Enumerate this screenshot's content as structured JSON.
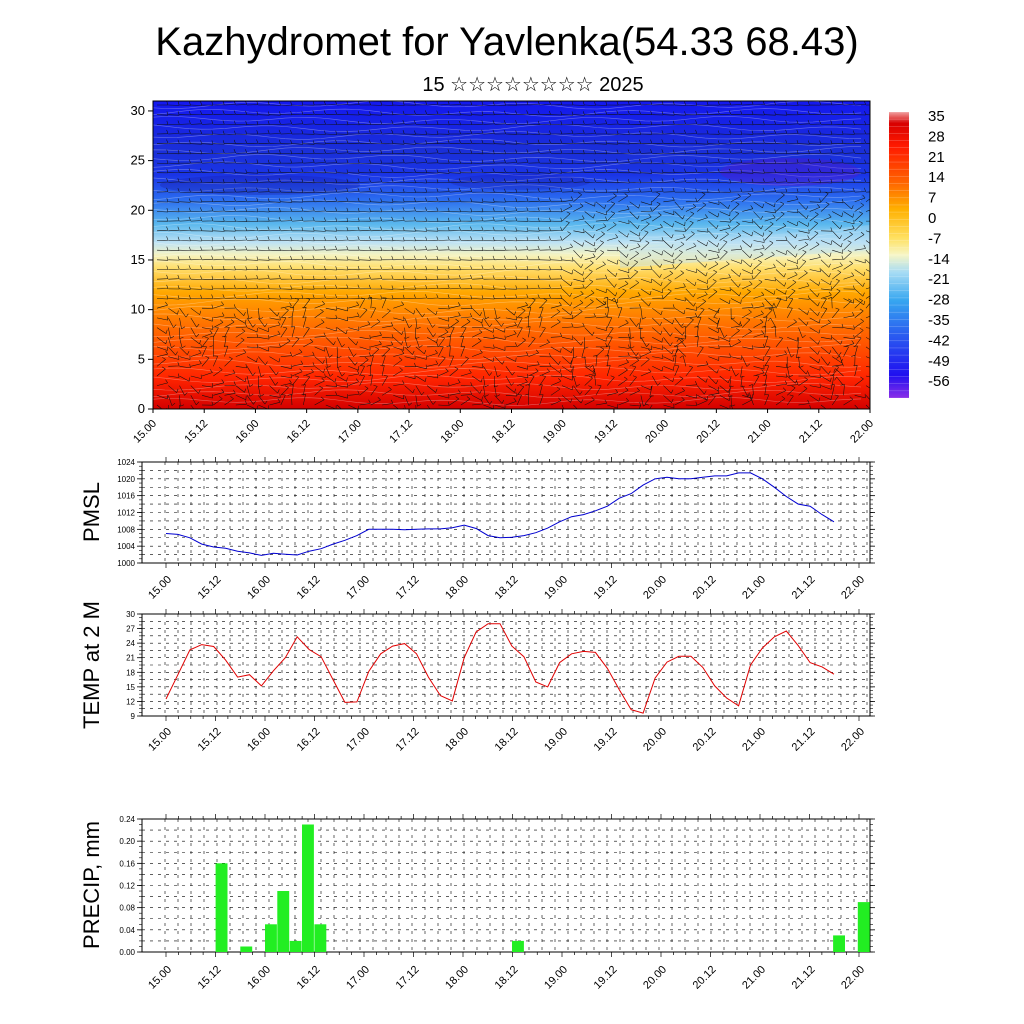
{
  "header": {
    "title": "Kazhydromet for Yavlenka(54.33 68.43)",
    "subtitle": "15 ☆☆☆☆☆☆☆☆ 2025"
  },
  "chart_data": [
    {
      "type": "heatmap",
      "title": "",
      "xlabel": "",
      "ylabel": "",
      "x_ticks": [
        "15.00",
        "15.12",
        "16.00",
        "16.12",
        "17.00",
        "17.12",
        "18.00",
        "18.12",
        "19.00",
        "19.12",
        "20.00",
        "20.12",
        "21.00",
        "21.12",
        "22.00"
      ],
      "y_ticks": [
        0,
        5,
        10,
        15,
        20,
        25,
        30
      ],
      "ylim": [
        0,
        31
      ],
      "colorbar_labels": [
        "35",
        "28",
        "21",
        "14",
        "7",
        "0",
        "-7",
        "-14",
        "-21",
        "-28",
        "-35",
        "-42",
        "-49",
        "-56"
      ],
      "colorbar_range": [
        -60,
        38
      ],
      "wind_barbs": true,
      "colors": [
        "#7a1cf0",
        "#1a10f0",
        "#2a70f0",
        "#3ec0f0",
        "#c8e8f4",
        "#fff8a0",
        "#ffd000",
        "#ff8000",
        "#ff2000",
        "#d80000"
      ]
    },
    {
      "type": "line",
      "ylabel": "PMSL",
      "ylim": [
        1000,
        1024
      ],
      "y_ticks": [
        1000,
        1004,
        1008,
        1012,
        1016,
        1020,
        1024
      ],
      "x_ticks": [
        "15.00",
        "15.12",
        "16.00",
        "16.12",
        "17.00",
        "17.12",
        "18.00",
        "18.12",
        "19.00",
        "19.12",
        "20.00",
        "20.12",
        "21.00",
        "21.12",
        "22.00"
      ],
      "series": [
        {
          "color": "#0000d0",
          "values": [
            1007,
            1006.8,
            1006,
            1004.5,
            1003.8,
            1003.5,
            1002.8,
            1002.4,
            1001.8,
            1002.3,
            1002.1,
            1001.9,
            1002.8,
            1003.4,
            1004.5,
            1005.4,
            1006.5,
            1008,
            1008,
            1008,
            1007.9,
            1008,
            1008.1,
            1008.1,
            1008.4,
            1009,
            1008.2,
            1006.5,
            1006,
            1006.1,
            1006.5,
            1007.2,
            1008.3,
            1009.8,
            1011,
            1011.5,
            1012.4,
            1013.5,
            1015.4,
            1016.5,
            1018.5,
            1020,
            1020.4,
            1020,
            1020,
            1020.4,
            1020.7,
            1020.7,
            1021.4,
            1021.4,
            1020,
            1018,
            1015.8,
            1014,
            1013.5,
            1011.5,
            1009.8
          ]
        }
      ]
    },
    {
      "type": "line",
      "ylabel": "TEMP at 2 M",
      "ylim": [
        9,
        30
      ],
      "y_ticks": [
        9,
        12,
        15,
        18,
        21,
        24,
        27,
        30
      ],
      "x_ticks": [
        "15.00",
        "15.12",
        "16.00",
        "16.12",
        "17.00",
        "17.12",
        "18.00",
        "18.12",
        "19.00",
        "19.12",
        "20.00",
        "20.12",
        "21.00",
        "21.12",
        "22.00"
      ],
      "series": [
        {
          "color": "#e00000",
          "values": [
            12.5,
            17.5,
            22.6,
            23.7,
            23.3,
            20.5,
            17,
            17.5,
            15.2,
            18.3,
            21,
            25.3,
            22.7,
            21.2,
            16.5,
            11.8,
            11.9,
            18.2,
            21.8,
            23.4,
            23.9,
            21.8,
            17,
            13.2,
            12.1,
            21,
            26.3,
            28,
            28,
            23.4,
            21.2,
            16,
            15,
            20,
            21.8,
            22.3,
            22.1,
            18.8,
            14.4,
            10.3,
            9.6,
            16.8,
            20.1,
            21.3,
            21.3,
            19,
            15.2,
            12.7,
            11.1,
            19.5,
            23,
            25.3,
            26.5,
            23.5,
            20,
            19.1,
            17.6
          ]
        }
      ]
    },
    {
      "type": "bar",
      "ylabel": "PRECIP, mm",
      "ylim": [
        0,
        0.24
      ],
      "y_ticks": [
        "0.00",
        "0.04",
        "0.08",
        "0.12",
        "0.16",
        "0.20",
        "0.24"
      ],
      "x_ticks": [
        "15.00",
        "15.12",
        "16.00",
        "16.12",
        "17.00",
        "17.12",
        "18.00",
        "18.12",
        "19.00",
        "19.12",
        "20.00",
        "20.12",
        "21.00",
        "21.12",
        "22.00"
      ],
      "series": [
        {
          "color": "#22ee22",
          "values": [
            0,
            0,
            0,
            0,
            0,
            0.16,
            0,
            0.01,
            0,
            0.05,
            0.11,
            0.02,
            0.23,
            0.05,
            0,
            0,
            0,
            0,
            0,
            0,
            0,
            0,
            0,
            0,
            0,
            0,
            0,
            0,
            0,
            0.02,
            0,
            0,
            0,
            0,
            0,
            0,
            0,
            0,
            0,
            0,
            0,
            0,
            0,
            0,
            0,
            0,
            0,
            0,
            0,
            0,
            0,
            0,
            0,
            0,
            0,
            0.03,
            0,
            0.09
          ]
        }
      ]
    }
  ]
}
